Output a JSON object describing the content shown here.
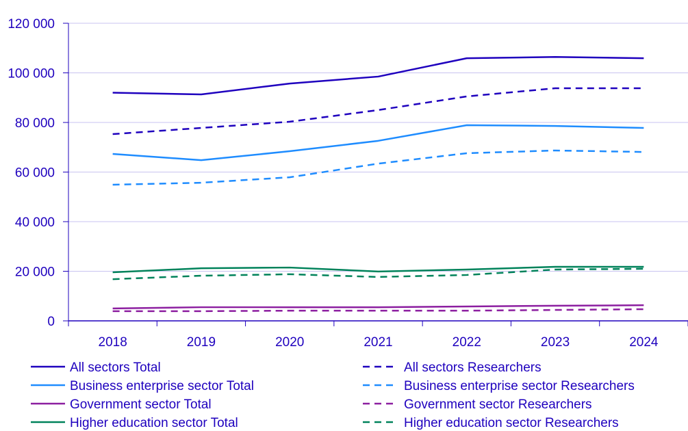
{
  "chart_data": {
    "type": "line",
    "x": [
      "2018",
      "2019",
      "2020",
      "2021",
      "2022",
      "2023",
      "2024"
    ],
    "ylim": [
      0,
      120000
    ],
    "yticks": [
      0,
      20000,
      40000,
      60000,
      80000,
      100000,
      120000
    ],
    "ytick_labels": [
      "0",
      "20 000",
      "40 000",
      "60 000",
      "80 000",
      "100 000",
      "120 000"
    ],
    "grid": "horizontal",
    "legend_placement": "bottom",
    "series": [
      {
        "name": "All sectors Total",
        "color": "#1e00be",
        "dash": false,
        "values": [
          92000,
          91300,
          95700,
          98500,
          105900,
          106400,
          105900
        ]
      },
      {
        "name": "All sectors Researchers",
        "color": "#1e00be",
        "dash": true,
        "values": [
          75300,
          77800,
          80300,
          85000,
          90500,
          93800,
          93800
        ]
      },
      {
        "name": "Business enterprise sector Total",
        "color": "#1e8cff",
        "dash": false,
        "values": [
          67300,
          64800,
          68400,
          72600,
          78900,
          78600,
          77800
        ]
      },
      {
        "name": "Business enterprise sector Researchers",
        "color": "#1e8cff",
        "dash": true,
        "values": [
          54900,
          55700,
          57900,
          63400,
          67600,
          68700,
          68100
        ]
      },
      {
        "name": "Government sector Total",
        "color": "#8c1ea0",
        "dash": false,
        "values": [
          5000,
          5500,
          5500,
          5500,
          5800,
          6100,
          6300
        ]
      },
      {
        "name": "Government sector Researchers",
        "color": "#8c1ea0",
        "dash": true,
        "values": [
          3900,
          3900,
          4100,
          4100,
          4100,
          4400,
          4700
        ]
      },
      {
        "name": "Higher education sector Total",
        "color": "#00825a",
        "dash": false,
        "values": [
          19600,
          21200,
          21500,
          19900,
          20700,
          21800,
          21800
        ]
      },
      {
        "name": "Higher education sector Researchers",
        "color": "#00825a",
        "dash": true,
        "values": [
          16800,
          18200,
          18800,
          17700,
          18500,
          20700,
          21000
        ]
      }
    ]
  }
}
